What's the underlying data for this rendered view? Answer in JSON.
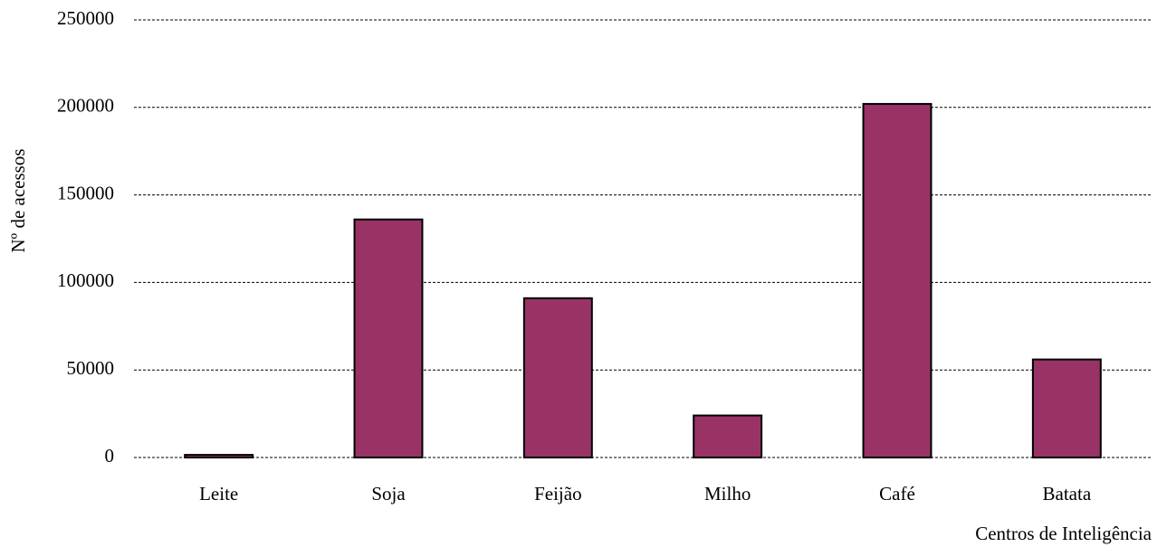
{
  "chart_data": {
    "type": "bar",
    "x_label": "Centros de Inteligência",
    "y_label": "Nº de acessos",
    "categories": [
      "Leite",
      "Soja",
      "Feijão",
      "Milho",
      "Café",
      "Batata"
    ],
    "values": [
      1500,
      136000,
      91000,
      24000,
      202000,
      56000
    ],
    "color": "#993366",
    "ylim": [
      0,
      250000
    ],
    "yticks": [
      0,
      50000,
      100000,
      150000,
      200000,
      250000
    ],
    "grid": true
  }
}
